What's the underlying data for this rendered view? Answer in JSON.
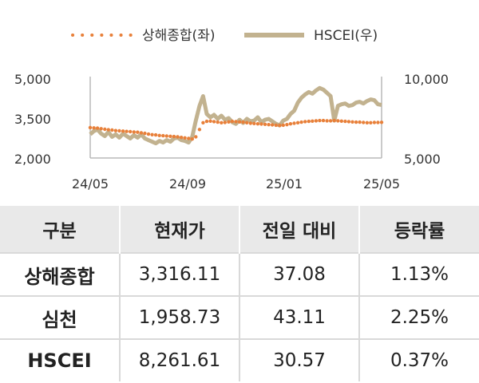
{
  "chart_data": {
    "type": "line",
    "x_ticks": [
      "24/05",
      "24/09",
      "25/01",
      "25/05"
    ],
    "y_left": {
      "min": 2000,
      "max": 5000,
      "ticks": [
        "5,000",
        "3,500",
        "2,000"
      ]
    },
    "y_right": {
      "min": 5000,
      "max": 10000,
      "ticks": [
        "10,000",
        "5,000"
      ]
    },
    "grid": false,
    "legend_position": "top",
    "series": [
      {
        "name": "상해종합(좌)",
        "axis": "left",
        "style": "dotted",
        "color": "#e8803a",
        "x": [
          0,
          0.15,
          0.3,
          0.45,
          0.6,
          0.75,
          0.9,
          1.05,
          1.2,
          1.35,
          1.5,
          1.65,
          1.8,
          1.95,
          2.1,
          2.25,
          2.4,
          2.55,
          2.7,
          2.85,
          3.0,
          3.15,
          3.3,
          3.45,
          3.6,
          3.75,
          3.9,
          4.05,
          4.2,
          4.35,
          4.5,
          4.65,
          4.8,
          4.95,
          5.1,
          5.25,
          5.4,
          5.55,
          5.7,
          5.85,
          6.0,
          6.15,
          6.3,
          6.45,
          6.6,
          6.75,
          6.9,
          7.05,
          7.2,
          7.35,
          7.5,
          7.65,
          7.8,
          7.95,
          8.1,
          8.25,
          8.4,
          8.55,
          8.7,
          8.85,
          9.0,
          9.15,
          9.3,
          9.45,
          9.6,
          9.75,
          9.9,
          10.05,
          10.2,
          10.35,
          10.5,
          10.65,
          10.8,
          10.95,
          11.1,
          11.25,
          11.4,
          11.55,
          11.7,
          11.85,
          12.0
        ],
        "y": [
          3120,
          3110,
          3100,
          3080,
          3060,
          3040,
          3030,
          3010,
          3000,
          2990,
          2980,
          2970,
          2960,
          2950,
          2930,
          2910,
          2880,
          2860,
          2850,
          2830,
          2820,
          2810,
          2800,
          2790,
          2780,
          2760,
          2740,
          2720,
          2700,
          2780,
          3050,
          3300,
          3350,
          3360,
          3340,
          3320,
          3300,
          3310,
          3330,
          3350,
          3340,
          3330,
          3320,
          3300,
          3280,
          3270,
          3260,
          3250,
          3240,
          3230,
          3220,
          3210,
          3200,
          3210,
          3230,
          3260,
          3280,
          3300,
          3320,
          3340,
          3350,
          3360,
          3370,
          3380,
          3380,
          3370,
          3370,
          3380,
          3370,
          3360,
          3350,
          3340,
          3330,
          3320,
          3320,
          3310,
          3300,
          3300,
          3310,
          3310,
          3316
        ]
      },
      {
        "name": "HSCEI(우)",
        "axis": "right",
        "style": "solid",
        "color": "#c2b28f",
        "x": [
          0,
          0.15,
          0.3,
          0.45,
          0.6,
          0.75,
          0.9,
          1.05,
          1.2,
          1.35,
          1.5,
          1.65,
          1.8,
          1.95,
          2.1,
          2.25,
          2.4,
          2.55,
          2.7,
          2.85,
          3.0,
          3.15,
          3.3,
          3.45,
          3.6,
          3.75,
          3.9,
          4.05,
          4.2,
          4.35,
          4.5,
          4.65,
          4.8,
          4.95,
          5.1,
          5.25,
          5.4,
          5.55,
          5.7,
          5.85,
          6.0,
          6.15,
          6.3,
          6.45,
          6.6,
          6.75,
          6.9,
          7.05,
          7.2,
          7.35,
          7.5,
          7.65,
          7.8,
          7.95,
          8.1,
          8.25,
          8.4,
          8.55,
          8.7,
          8.85,
          9.0,
          9.15,
          9.3,
          9.45,
          9.6,
          9.75,
          9.9,
          10.05,
          10.2,
          10.35,
          10.5,
          10.65,
          10.8,
          10.95,
          11.1,
          11.25,
          11.4,
          11.55,
          11.7,
          11.85,
          12.0
        ],
        "y": [
          6450,
          6650,
          6750,
          6500,
          6350,
          6600,
          6300,
          6450,
          6250,
          6500,
          6350,
          6200,
          6400,
          6250,
          6450,
          6200,
          6100,
          6000,
          5900,
          6050,
          5950,
          6100,
          6000,
          6200,
          6250,
          6100,
          6050,
          5950,
          6300,
          7300,
          8200,
          8800,
          7700,
          7500,
          7650,
          7400,
          7600,
          7350,
          7450,
          7200,
          7100,
          7350,
          7150,
          7400,
          7250,
          7300,
          7500,
          7200,
          7350,
          7400,
          7250,
          7100,
          7000,
          7300,
          7400,
          7700,
          7900,
          8400,
          8700,
          8900,
          9050,
          8950,
          9150,
          9300,
          9200,
          9000,
          8800,
          7300,
          8200,
          8300,
          8350,
          8200,
          8250,
          8400,
          8450,
          8350,
          8500,
          8600,
          8550,
          8300,
          8262
        ]
      }
    ]
  },
  "table": {
    "headers": [
      "구분",
      "현재가",
      "전일 대비",
      "등락률"
    ],
    "rows": [
      [
        "상해종합",
        "3,316.11",
        "37.08",
        "1.13%"
      ],
      [
        "심천",
        "1,958.73",
        "43.11",
        "2.25%"
      ],
      [
        "HSCEI",
        "8,261.61",
        "30.57",
        "0.37%"
      ]
    ]
  }
}
